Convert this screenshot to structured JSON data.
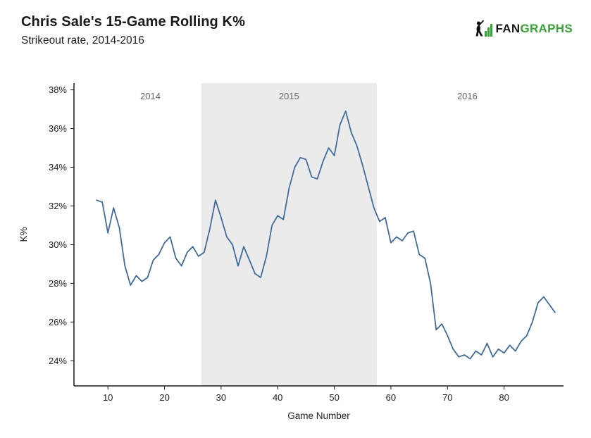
{
  "header": {
    "title": "Chris Sale's 15-Game Rolling K%",
    "subtitle": "Strikeout rate, 2014-2016"
  },
  "logo": {
    "text_dark": "FAN",
    "text_green": "GRAPHS",
    "green_color": "#33A532",
    "icon": "fangraphs-batter-bars-icon"
  },
  "chart_data": {
    "type": "line",
    "title": "Chris Sale's 15-Game Rolling K%",
    "subtitle": "Strikeout rate, 2014-2016",
    "xlabel": "Game Number",
    "ylabel": "K%",
    "xlim": [
      4,
      90.5
    ],
    "ylim_pct": [
      22.7,
      38.35
    ],
    "xticks": [
      10,
      20,
      30,
      40,
      50,
      60,
      70,
      80
    ],
    "yticks_pct": [
      24,
      26,
      28,
      30,
      32,
      34,
      36,
      38
    ],
    "ytick_suffix": "%",
    "grid": false,
    "legend": "none",
    "line_color": "#3E6D9C",
    "shaded_region": {
      "from_game": 26.5,
      "to_game": 57.5,
      "color": "#EBEBEB",
      "label": "2015"
    },
    "season_labels": [
      {
        "label": "2014",
        "game": 17.5
      },
      {
        "label": "2015",
        "game": 42
      },
      {
        "label": "2016",
        "game": 73.5
      }
    ],
    "series": [
      {
        "name": "15-game rolling K%",
        "x": [
          8,
          9,
          10,
          11,
          12,
          13,
          14,
          15,
          16,
          17,
          18,
          19,
          20,
          21,
          22,
          23,
          24,
          25,
          26,
          27,
          28,
          29,
          30,
          31,
          32,
          33,
          34,
          35,
          36,
          37,
          38,
          39,
          40,
          41,
          42,
          43,
          44,
          45,
          46,
          47,
          48,
          49,
          50,
          51,
          52,
          53,
          54,
          55,
          56,
          57,
          58,
          59,
          60,
          61,
          62,
          63,
          64,
          65,
          66,
          67,
          68,
          69,
          70,
          71,
          72,
          73,
          74,
          75,
          76,
          77,
          78,
          79,
          80,
          81,
          82,
          83,
          84,
          85,
          86,
          87,
          88,
          89
        ],
        "y_pct": [
          32.3,
          32.2,
          30.6,
          31.9,
          30.9,
          28.9,
          27.9,
          28.4,
          28.1,
          28.3,
          29.2,
          29.5,
          30.1,
          30.4,
          29.3,
          28.9,
          29.6,
          29.9,
          29.4,
          29.6,
          30.8,
          32.3,
          31.4,
          30.4,
          30.0,
          28.9,
          29.9,
          29.2,
          28.5,
          28.3,
          29.4,
          31.0,
          31.5,
          31.3,
          32.9,
          34.0,
          34.5,
          34.4,
          33.5,
          33.4,
          34.3,
          35.0,
          34.6,
          36.2,
          36.9,
          35.8,
          35.1,
          34.1,
          33.0,
          31.9,
          31.2,
          31.4,
          30.1,
          30.4,
          30.2,
          30.6,
          30.7,
          29.5,
          29.3,
          28.0,
          25.6,
          25.9,
          25.3,
          24.6,
          24.2,
          24.3,
          24.1,
          24.5,
          24.3,
          24.9,
          24.2,
          24.6,
          24.4,
          24.8,
          24.5,
          25.0,
          25.3,
          26.0,
          27.0,
          27.3,
          26.9,
          26.5
        ]
      }
    ]
  }
}
